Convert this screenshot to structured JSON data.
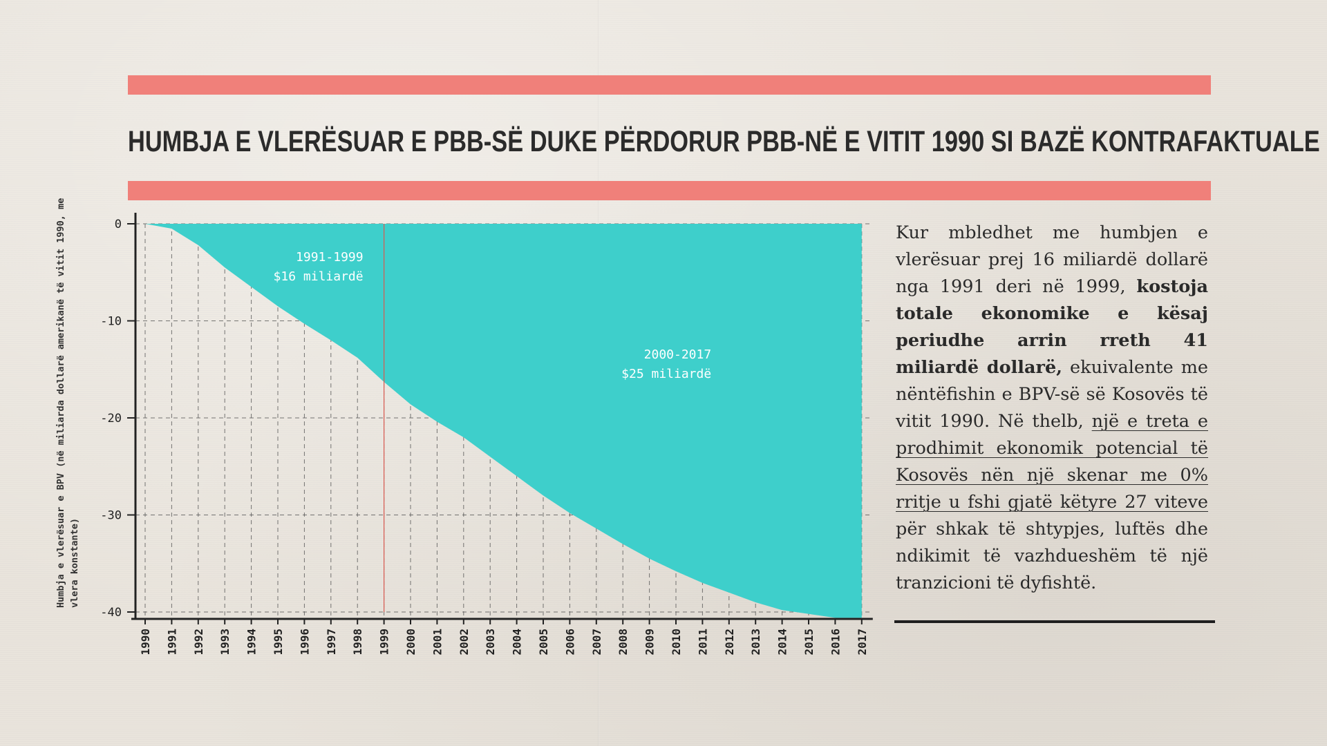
{
  "title": "HUMBJA E VLERËSUAR E PBB-SË DUKE PËRDORUR PBB-NË E VITIT 1990 SI BAZË KONTRAFAKTUALE",
  "colors": {
    "accent_bar": "#f0807a",
    "area_fill": "#3ecfcb",
    "divider_line": "#d8584f",
    "axis": "#222222"
  },
  "body": {
    "p1": "Kur mbledhet me humbjen e vlerësuar prej 16 miliardë dollarë nga 1991 deri në 1999,",
    "p2_bold": "kostoja totale ekonomike e kësaj periudhe arrin rreth 41 miliardë dollarë,",
    "p3": "ekuivalente me nëntëfishin e BPV-së së Kosovës të vitit 1990. Në thelb,",
    "p4_underlined": "një e treta e prodhimit ekonomik potencial të Kosovës nën një skenar me 0% rritje u fshi gjatë këtyre 27 viteve",
    "p5": "për shkak të shtypjes, luftës dhe ndikimit të vazhdueshëm të një tranzicioni të dyfishtë."
  },
  "chart_data": {
    "type": "area",
    "ylabel": "Humbja e vlerësuar e BPV (në miliarda dollarë amerikanë të vitit 1990, me vlera konstante)",
    "xlabel": "",
    "ylim": [
      -40,
      0
    ],
    "yticks": [
      0,
      -10,
      -20,
      -30,
      -40
    ],
    "grid": true,
    "x": [
      "1990",
      "1991",
      "1992",
      "1993",
      "1994",
      "1995",
      "1996",
      "1997",
      "1998",
      "1999",
      "2000",
      "2001",
      "2002",
      "2003",
      "2004",
      "2005",
      "2006",
      "2007",
      "2008",
      "2009",
      "2010",
      "2011",
      "2012",
      "2013",
      "2014",
      "2015",
      "2016",
      "2017"
    ],
    "values": [
      0,
      -0.5,
      -2.2,
      -4.5,
      -6.5,
      -8.5,
      -10.3,
      -12.0,
      -13.8,
      -16.3,
      -18.6,
      -20.4,
      -22.0,
      -24.0,
      -26.0,
      -28.0,
      -29.8,
      -31.4,
      -33.0,
      -34.5,
      -35.8,
      -37.0,
      -38.0,
      -39.0,
      -39.8,
      -40.2,
      -40.6,
      -40.6
    ],
    "divider_year": "1999",
    "annotations": [
      {
        "period": "1991-1999",
        "amount": "$16 miliardë"
      },
      {
        "period": "2000-2017",
        "amount": "$25 miliardë"
      }
    ]
  }
}
